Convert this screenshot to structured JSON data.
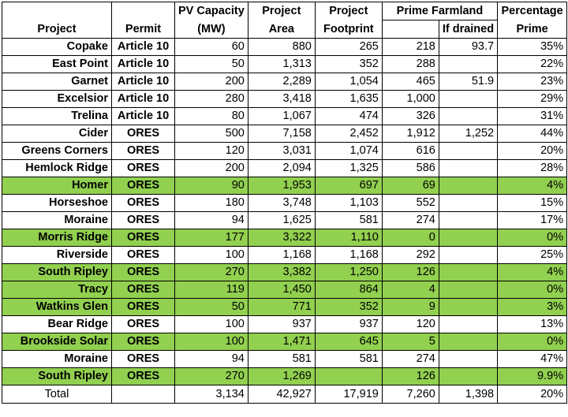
{
  "table": {
    "headers": {
      "project": "Project",
      "permit": "Permit",
      "pv_capacity_line1": "PV Capacity",
      "pv_capacity_line2": "(MW)",
      "project_area_line1": "Project",
      "project_area_line2": "Area",
      "project_footprint_line1": "Project",
      "project_footprint_line2": "Footprint",
      "prime_farmland": "Prime Farmland",
      "if_drained": "If drained",
      "percentage_line1": "Percentage",
      "percentage_line2": "Prime"
    },
    "rows": [
      {
        "project": "Copake",
        "permit": "Article 10",
        "capacity": "60",
        "area": "880",
        "footprint": "265",
        "prime": "218",
        "drained": "93.7",
        "pct": "35%",
        "highlight": false
      },
      {
        "project": "East Point",
        "permit": "Article 10",
        "capacity": "50",
        "area": "1,313",
        "footprint": "352",
        "prime": "288",
        "drained": "",
        "pct": "22%",
        "highlight": false
      },
      {
        "project": "Garnet",
        "permit": "Article 10",
        "capacity": "200",
        "area": "2,289",
        "footprint": "1,054",
        "prime": "465",
        "drained": "51.9",
        "pct": "23%",
        "highlight": false
      },
      {
        "project": "Excelsior",
        "permit": "Article 10",
        "capacity": "280",
        "area": "3,418",
        "footprint": "1,635",
        "prime": "1,000",
        "drained": "",
        "pct": "29%",
        "highlight": false
      },
      {
        "project": "Trelina",
        "permit": "Article 10",
        "capacity": "80",
        "area": "1,067",
        "footprint": "474",
        "prime": "326",
        "drained": "",
        "pct": "31%",
        "highlight": false
      },
      {
        "project": "Cider",
        "permit": "ORES",
        "capacity": "500",
        "area": "7,158",
        "footprint": "2,452",
        "prime": "1,912",
        "drained": "1,252",
        "pct": "44%",
        "highlight": false
      },
      {
        "project": "Greens Corners",
        "permit": "ORES",
        "capacity": "120",
        "area": "3,031",
        "footprint": "1,074",
        "prime": "616",
        "drained": "",
        "pct": "20%",
        "highlight": false
      },
      {
        "project": "Hemlock Ridge",
        "permit": "ORES",
        "capacity": "200",
        "area": "2,094",
        "footprint": "1,325",
        "prime": "586",
        "drained": "",
        "pct": "28%",
        "highlight": false
      },
      {
        "project": "Homer",
        "permit": "ORES",
        "capacity": "90",
        "area": "1,953",
        "footprint": "697",
        "prime": "69",
        "drained": "",
        "pct": "4%",
        "highlight": true
      },
      {
        "project": "Horseshoe",
        "permit": "ORES",
        "capacity": "180",
        "area": "3,748",
        "footprint": "1,103",
        "prime": "552",
        "drained": "",
        "pct": "15%",
        "highlight": false
      },
      {
        "project": "Moraine",
        "permit": "ORES",
        "capacity": "94",
        "area": "1,625",
        "footprint": "581",
        "prime": "274",
        "drained": "",
        "pct": "17%",
        "highlight": false
      },
      {
        "project": "Morris Ridge",
        "permit": "ORES",
        "capacity": "177",
        "area": "3,322",
        "footprint": "1,110",
        "prime": "0",
        "drained": "",
        "pct": "0%",
        "highlight": true
      },
      {
        "project": "Riverside",
        "permit": "ORES",
        "capacity": "100",
        "area": "1,168",
        "footprint": "1,168",
        "prime": "292",
        "drained": "",
        "pct": "25%",
        "highlight": false
      },
      {
        "project": "South Ripley",
        "permit": "ORES",
        "capacity": "270",
        "area": "3,382",
        "footprint": "1,250",
        "prime": "126",
        "drained": "",
        "pct": "4%",
        "highlight": true
      },
      {
        "project": "Tracy",
        "permit": "ORES",
        "capacity": "119",
        "area": "1,450",
        "footprint": "864",
        "prime": "4",
        "drained": "",
        "pct": "0%",
        "highlight": true
      },
      {
        "project": "Watkins Glen",
        "permit": "ORES",
        "capacity": "50",
        "area": "771",
        "footprint": "352",
        "prime": "9",
        "drained": "",
        "pct": "3%",
        "highlight": true
      },
      {
        "project": "Bear Ridge",
        "permit": "ORES",
        "capacity": "100",
        "area": "937",
        "footprint": "937",
        "prime": "120",
        "drained": "",
        "pct": "13%",
        "highlight": false
      },
      {
        "project": "Brookside Solar",
        "permit": "ORES",
        "capacity": "100",
        "area": "1,471",
        "footprint": "645",
        "prime": "5",
        "drained": "",
        "pct": "0%",
        "highlight": true
      },
      {
        "project": "Moraine",
        "permit": "ORES",
        "capacity": "94",
        "area": "581",
        "footprint": "581",
        "prime": "274",
        "drained": "",
        "pct": "47%",
        "highlight": false
      },
      {
        "project": "South Ripley",
        "permit": "ORES",
        "capacity": "270",
        "area": "1,269",
        "footprint": "",
        "prime": "126",
        "drained": "",
        "pct": "9.9%",
        "highlight": true
      }
    ],
    "total": {
      "label": "Total",
      "capacity": "3,134",
      "area": "42,927",
      "footprint": "17,919",
      "prime": "7,260",
      "drained": "1,398",
      "pct": "20%"
    },
    "highlight_color": "#92d050"
  }
}
